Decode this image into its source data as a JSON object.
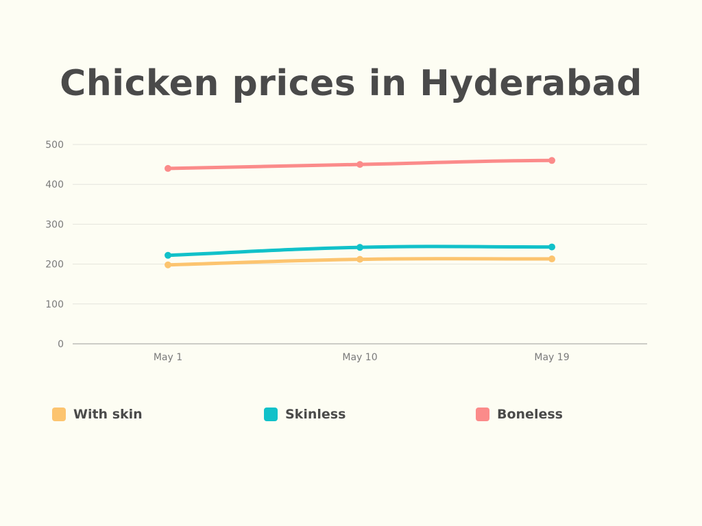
{
  "chart_data": {
    "type": "line",
    "title": "Chicken prices in Hyderabad",
    "xlabel": "",
    "ylabel": "",
    "categories": [
      "May 1",
      "May 10",
      "May 19"
    ],
    "ylim": [
      0,
      500
    ],
    "yticks": [
      0,
      100,
      200,
      300,
      400,
      500
    ],
    "grid": true,
    "legend_position": "bottom",
    "series": [
      {
        "name": "With skin",
        "color": "#fcc46f",
        "values": [
          198,
          212,
          213
        ]
      },
      {
        "name": "Skinless",
        "color": "#11c1c9",
        "values": [
          222,
          242,
          243
        ]
      },
      {
        "name": "Boneless",
        "color": "#fb8b8a",
        "values": [
          440,
          450,
          460
        ]
      }
    ]
  }
}
